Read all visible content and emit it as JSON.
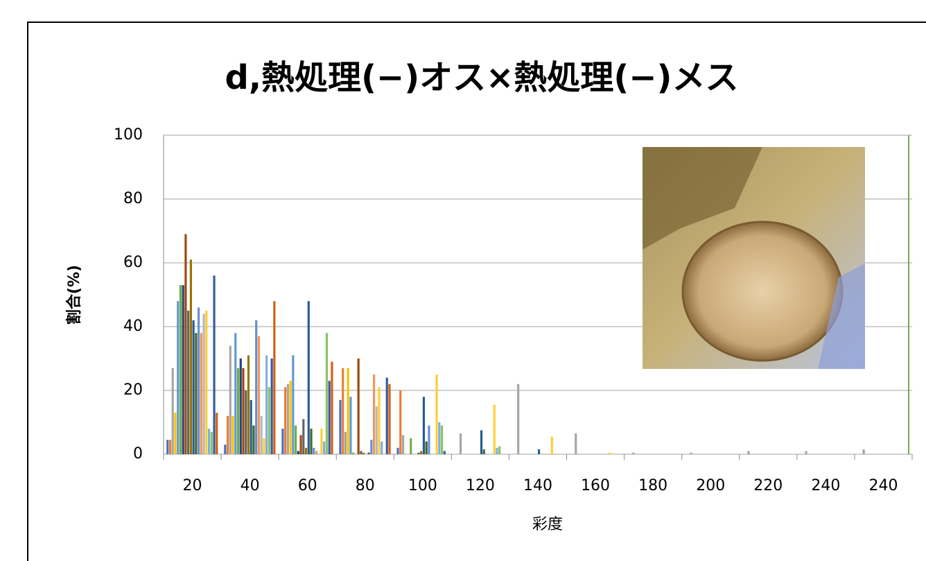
{
  "chart_data": {
    "type": "bar",
    "title": "d,熱処理(−)オス×熱処理(−)メス",
    "x_label": "彩度",
    "y_label": "割合(%)",
    "categories": [
      "20",
      "40",
      "60",
      "80",
      "100",
      "120",
      "140",
      "160",
      "180",
      "200",
      "220",
      "240",
      "240"
    ],
    "ylim": [
      0,
      100
    ],
    "yticks": [
      0,
      20,
      40,
      60,
      80,
      100
    ],
    "grid": true,
    "series": [
      {
        "color": "#4472c4",
        "values": [
          4.5,
          3,
          8,
          17,
          2,
          0,
          0,
          0,
          0,
          0,
          0,
          0,
          0
        ]
      },
      {
        "color": "#ed7d31",
        "values": [
          4.5,
          12,
          21,
          27,
          20,
          0,
          0,
          0,
          0,
          0,
          0,
          0,
          0
        ]
      },
      {
        "color": "#a5a5a5",
        "values": [
          27,
          34,
          22,
          7,
          6,
          6.5,
          22,
          6.5,
          0.5,
          0.5,
          1,
          1,
          1.5
        ]
      },
      {
        "color": "#ffc000",
        "values": [
          13,
          12,
          23,
          27,
          0,
          0,
          0,
          0,
          0,
          0,
          0,
          0,
          0
        ]
      },
      {
        "color": "#5b9bd5",
        "values": [
          48,
          38,
          31,
          18,
          0,
          0,
          0,
          0,
          0,
          0,
          0,
          0,
          0
        ]
      },
      {
        "color": "#70ad47",
        "values": [
          53,
          27,
          9,
          0.5,
          5,
          0,
          0,
          0,
          0,
          0,
          0,
          0,
          0
        ]
      },
      {
        "color": "#264478",
        "values": [
          53,
          30,
          1,
          0,
          0,
          0,
          0,
          0,
          0,
          0,
          0,
          0,
          0
        ]
      },
      {
        "color": "#9e480e",
        "values": [
          69,
          27,
          6,
          30,
          0,
          0,
          0,
          0,
          0,
          0,
          0,
          0,
          0
        ]
      },
      {
        "color": "#636363",
        "values": [
          45,
          20,
          11,
          1,
          0.5,
          0,
          0,
          0,
          0,
          0,
          0,
          0,
          0
        ]
      },
      {
        "color": "#997300",
        "values": [
          61,
          31,
          2,
          0.5,
          1,
          0,
          0,
          0,
          0,
          0,
          0,
          0,
          0
        ]
      },
      {
        "color": "#255e91",
        "values": [
          42,
          17,
          48,
          0,
          18,
          7.5,
          1.5,
          0,
          0,
          0,
          0,
          0,
          0
        ]
      },
      {
        "color": "#43682b",
        "values": [
          38,
          9,
          8,
          0.5,
          4,
          1.5,
          0,
          0,
          0,
          0,
          0,
          0,
          0
        ]
      },
      {
        "color": "#698ed0",
        "values": [
          46,
          42,
          2,
          4.5,
          9,
          0,
          0,
          0,
          0,
          0,
          0,
          0,
          0
        ]
      },
      {
        "color": "#f1975a",
        "values": [
          38,
          37,
          1,
          25,
          0,
          0,
          0,
          0,
          0,
          0,
          0,
          0,
          0
        ]
      },
      {
        "color": "#b7b7b7",
        "values": [
          44,
          12,
          0,
          15,
          0,
          0,
          0,
          0,
          0,
          0,
          0,
          0,
          0
        ]
      },
      {
        "color": "#ffcd33",
        "values": [
          45,
          5,
          8,
          21,
          25,
          15.5,
          5.5,
          0.5,
          0,
          0,
          0,
          0,
          0
        ]
      },
      {
        "color": "#7cafdd",
        "values": [
          8,
          31,
          4,
          4,
          10,
          2,
          0,
          0,
          0,
          0,
          0,
          0,
          0
        ]
      },
      {
        "color": "#8cc168",
        "values": [
          7,
          21,
          38,
          0,
          9,
          2.5,
          0,
          0,
          0,
          0,
          0,
          0,
          0
        ]
      },
      {
        "color": "#335aa1",
        "values": [
          56,
          30,
          23,
          24,
          1,
          0,
          0,
          0,
          0,
          0,
          0,
          0,
          0
        ]
      },
      {
        "color": "#d26012",
        "values": [
          13,
          48,
          29,
          22,
          0,
          0,
          0,
          0,
          0,
          0,
          0,
          0,
          0
        ]
      }
    ]
  }
}
